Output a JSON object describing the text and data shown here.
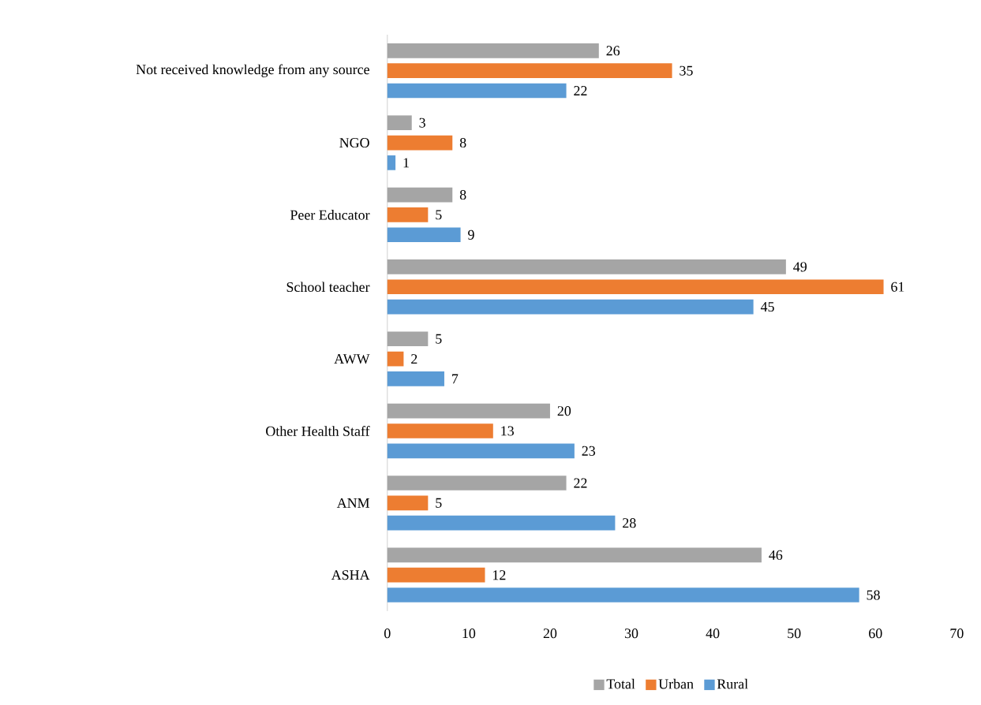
{
  "chart_data": {
    "type": "bar",
    "orientation": "horizontal",
    "categories": [
      "Not received knowledge from any source",
      "NGO",
      "Peer Educator",
      "School teacher",
      "AWW",
      "Other Health Staff",
      "ANM",
      "ASHA"
    ],
    "series": [
      {
        "name": "Total",
        "color": "#a5a5a5",
        "values": [
          26,
          3,
          8,
          49,
          5,
          20,
          22,
          46
        ]
      },
      {
        "name": "Urban",
        "color": "#ed7d31",
        "values": [
          35,
          8,
          5,
          61,
          2,
          13,
          5,
          12
        ]
      },
      {
        "name": "Rural",
        "color": "#5b9bd5",
        "values": [
          22,
          1,
          9,
          45,
          7,
          23,
          28,
          58
        ]
      }
    ],
    "xlim": [
      0,
      70
    ],
    "xticks": [
      0,
      10,
      20,
      30,
      40,
      50,
      60,
      70
    ],
    "data_labels": true,
    "legend": "bottom"
  }
}
